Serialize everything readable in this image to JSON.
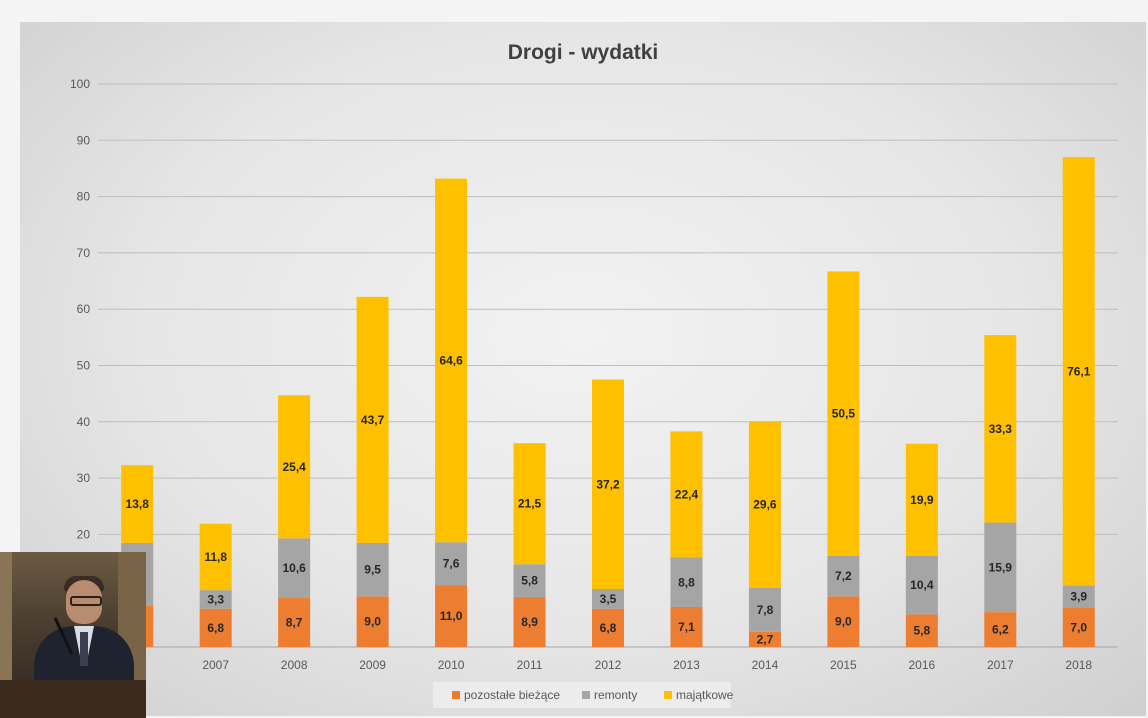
{
  "chart_data": {
    "type": "stacked-bar",
    "title": "Drogi - wydatki",
    "categories": [
      "2006",
      "2007",
      "2008",
      "2009",
      "2010",
      "2011",
      "2012",
      "2013",
      "2014",
      "2015",
      "2016",
      "2017",
      "2018"
    ],
    "category_labels_visible": [
      "06",
      "2007",
      "2008",
      "2009",
      "2010",
      "2011",
      "2012",
      "2013",
      "2014",
      "2015",
      "2016",
      "2017",
      "2018"
    ],
    "series": [
      {
        "name": "pozostałe bieżące",
        "color": "#ed7d31",
        "values": [
          7.3,
          6.8,
          8.7,
          9.0,
          11.0,
          8.9,
          6.8,
          7.1,
          2.7,
          9.0,
          5.8,
          6.2,
          7.0
        ],
        "labels": [
          "3",
          "6,8",
          "8,7",
          "9,0",
          "11,0",
          "8,9",
          "6,8",
          "7,1",
          "2,7",
          "9,0",
          "5,8",
          "6,2",
          "7,0"
        ]
      },
      {
        "name": "remonty",
        "color": "#a5a5a5",
        "values": [
          11.2,
          3.3,
          10.6,
          9.5,
          7.6,
          5.8,
          3.5,
          8.8,
          7.8,
          7.2,
          10.4,
          15.9,
          3.9
        ],
        "labels": [
          "2",
          "3,3",
          "10,6",
          "9,5",
          "7,6",
          "5,8",
          "3,5",
          "8,8",
          "7,8",
          "7,2",
          "10,4",
          "15,9",
          "3,9"
        ]
      },
      {
        "name": "majątkowe",
        "color": "#ffc000",
        "values": [
          13.8,
          11.8,
          25.4,
          43.7,
          64.6,
          21.5,
          37.2,
          22.4,
          29.6,
          50.5,
          19.9,
          33.3,
          76.1
        ],
        "labels": [
          "13,8",
          "11,8",
          "25,4",
          "43,7",
          "64,6",
          "21,5",
          "37,2",
          "22,4",
          "29,6",
          "50,5",
          "19,9",
          "33,3",
          "76,1"
        ]
      }
    ],
    "y_ticks": [
      "20",
      "30",
      "40",
      "50",
      "60",
      "70",
      "80",
      "90",
      "100"
    ],
    "ylim": [
      0,
      100
    ],
    "grid": true,
    "legend_position": "bottom"
  }
}
